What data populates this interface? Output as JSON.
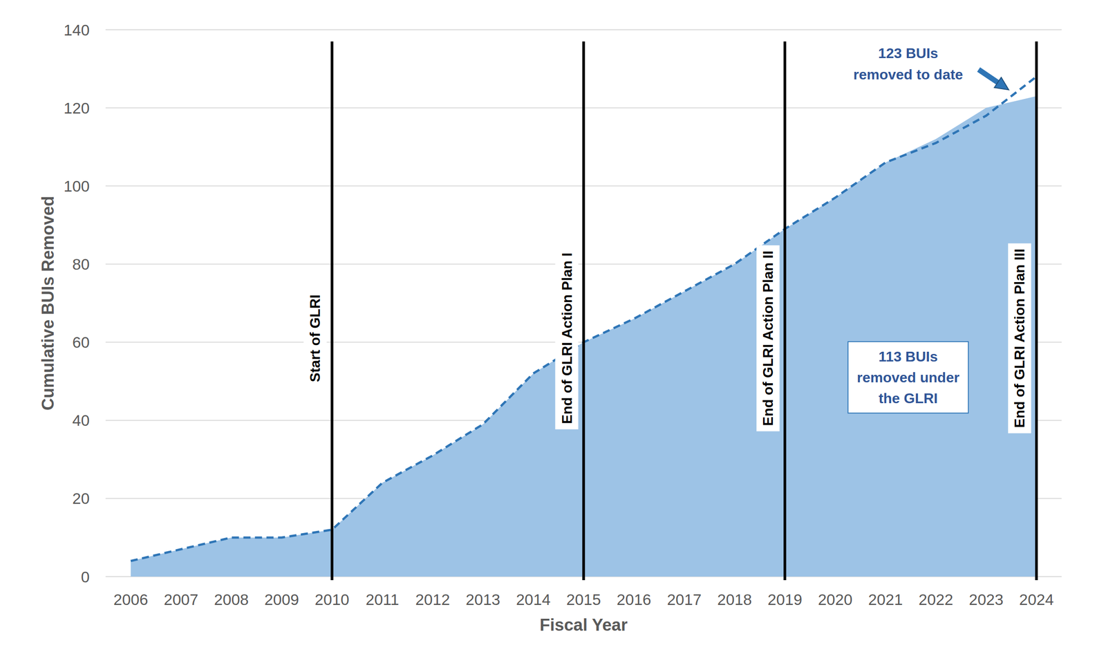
{
  "chart_data": {
    "type": "area",
    "x_label": "Fiscal Year",
    "y_label": "Cumulative BUIs Removed",
    "x": [
      2006,
      2007,
      2008,
      2009,
      2010,
      2011,
      2012,
      2013,
      2014,
      2015,
      2016,
      2017,
      2018,
      2019,
      2020,
      2021,
      2022,
      2023,
      2024
    ],
    "series": [
      {
        "type": "area",
        "color": "#9dc3e6",
        "values": [
          4,
          7,
          10,
          10,
          12,
          24,
          31,
          39,
          52,
          60,
          66,
          73,
          80,
          89,
          97,
          106,
          112,
          120,
          123
        ]
      },
      {
        "type": "line",
        "color": "#2e75b6",
        "line_style": "dashed",
        "values": [
          4,
          7,
          10,
          10,
          12,
          24,
          31,
          39,
          52,
          60,
          66,
          73,
          80,
          89,
          97,
          106,
          111,
          118,
          128
        ]
      }
    ],
    "xlim": [
      2005.5,
      2024.5
    ],
    "xticks": [
      2006,
      2007,
      2008,
      2009,
      2010,
      2011,
      2012,
      2013,
      2014,
      2015,
      2016,
      2017,
      2018,
      2019,
      2020,
      2021,
      2022,
      2023,
      2024
    ],
    "ylim": [
      0,
      140
    ],
    "yticks": [
      0,
      20,
      40,
      60,
      80,
      100,
      120,
      140
    ],
    "grid": true,
    "vlines": [
      {
        "x": 2010,
        "label": "Start of GLRI"
      },
      {
        "x": 2015,
        "label": "End of GLRI Action Plan I"
      },
      {
        "x": 2019,
        "label": "End of GLRI Action Plan II"
      },
      {
        "x": 2024,
        "label": "End of GLRI Action Plan III"
      }
    ],
    "annotations": [
      {
        "text": [
          "123 BUIs",
          "removed to date"
        ]
      },
      {
        "text": [
          "113 BUIs",
          "removed under",
          "the GLRI"
        ]
      }
    ]
  }
}
